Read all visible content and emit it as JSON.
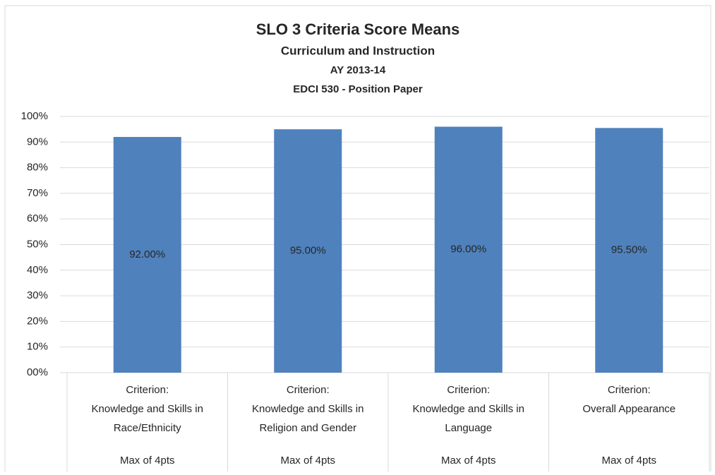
{
  "chart_data": {
    "type": "bar",
    "title": "SLO 3 Criteria Score Means",
    "subtitle": [
      "Curriculum and Instruction",
      "AY 2013-14",
      "EDCI 530  - Position Paper"
    ],
    "categories": [
      [
        "Criterion:",
        "Knowledge and Skills in",
        "Race/Ethnicity",
        "Max of 4pts"
      ],
      [
        "Criterion:",
        "Knowledge and Skills in",
        "Religion and Gender",
        "Max of 4pts"
      ],
      [
        "Criterion:",
        "Knowledge and Skills in",
        "Language",
        "Max of 4pts"
      ],
      [
        "Criterion:",
        "Overall Appearance",
        "",
        "Max of 4pts"
      ]
    ],
    "values": [
      92,
      95,
      96,
      95.5
    ],
    "value_labels": [
      "92.00%",
      "95.00%",
      "96.00%",
      "95.50%"
    ],
    "color": "#4f81bd",
    "ylim": [
      0,
      100
    ],
    "yticks": [
      {
        "value": 0,
        "label": "00%"
      },
      {
        "value": 10,
        "label": "10%"
      },
      {
        "value": 20,
        "label": "20%"
      },
      {
        "value": 30,
        "label": "30%"
      },
      {
        "value": 40,
        "label": "40%"
      },
      {
        "value": 50,
        "label": "50%"
      },
      {
        "value": 60,
        "label": "60%"
      },
      {
        "value": 70,
        "label": "70%"
      },
      {
        "value": 80,
        "label": "80%"
      },
      {
        "value": 90,
        "label": "90%"
      },
      {
        "value": 100,
        "label": "100%"
      }
    ],
    "grid": true
  }
}
